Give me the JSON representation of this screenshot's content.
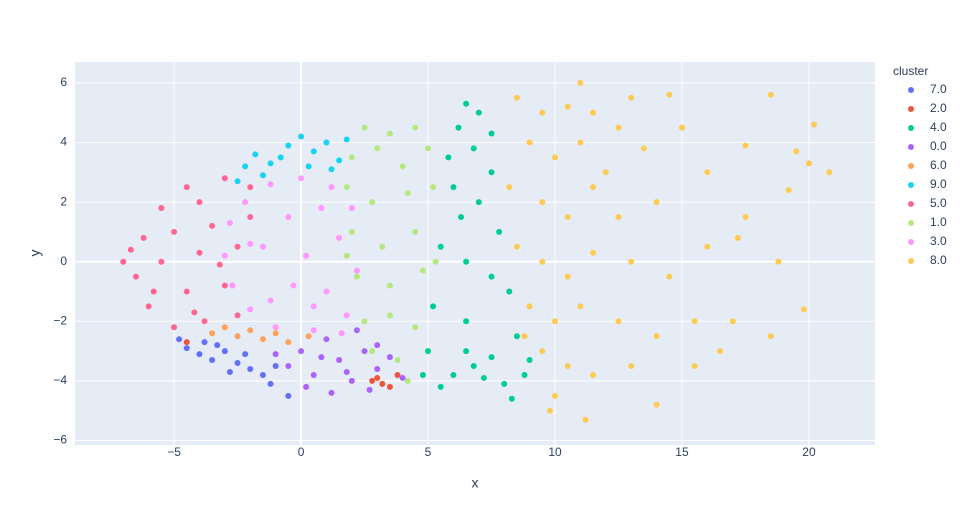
{
  "chart_data": {
    "type": "scatter",
    "xlabel": "x",
    "ylabel": "y",
    "legend_title": "cluster",
    "legend": "right",
    "xlim": [
      -8.9,
      22.6
    ],
    "ylim": [
      -6.15,
      6.7
    ],
    "grid": true,
    "xticks": [
      {
        "value": -5,
        "label": "−5"
      },
      0,
      5,
      10,
      15,
      20
    ],
    "yticks": [
      {
        "value": -6,
        "label": "−6"
      },
      {
        "value": -4,
        "label": "−4"
      },
      {
        "value": -2,
        "label": "−2"
      },
      0,
      2,
      4,
      6
    ],
    "series": [
      {
        "name": "7.0",
        "color": "#636efa",
        "x": [
          -4.5,
          -4,
          -3.5,
          -3,
          -2.5,
          -2,
          -1.5,
          -1,
          -3.8,
          -2.8,
          -4.8,
          -2.2,
          -1.2,
          -3.3,
          -0.5
        ],
        "y": [
          -2.9,
          -3.1,
          -3.3,
          -3.0,
          -3.4,
          -3.6,
          -3.8,
          -3.5,
          -2.7,
          -3.7,
          -2.6,
          -3.1,
          -4.1,
          -2.8,
          -4.5
        ]
      },
      {
        "name": "2.0",
        "color": "#EF553B",
        "x": [
          2.8,
          3.2,
          3.5,
          3,
          -4.5,
          3.8
        ],
        "y": [
          -4.0,
          -4.1,
          -4.2,
          -3.9,
          -2.7,
          -3.8
        ]
      },
      {
        "name": "4.0",
        "color": "#00cc96",
        "x": [
          6.5,
          7,
          6.2,
          7.5,
          5.8,
          6.8,
          7.5,
          6,
          7,
          6.3,
          7.8,
          5.5,
          6.5,
          7.5,
          8.2,
          5.2,
          6.5,
          8.5,
          5,
          6.5,
          7.5,
          9,
          4.8,
          6,
          7.2,
          8,
          8.3,
          5.5,
          6.8,
          8.8
        ],
        "y": [
          5.3,
          5,
          4.5,
          4.3,
          3.5,
          3.8,
          3,
          2.5,
          2,
          1.5,
          1,
          0.5,
          0,
          -0.5,
          -1,
          -1.5,
          -2,
          -2.5,
          -3,
          -3,
          -3.2,
          -3.3,
          -3.8,
          -3.8,
          -3.9,
          -4.1,
          -4.6,
          -4.2,
          -3.5,
          -3.8
        ]
      },
      {
        "name": "0.0",
        "color": "#ab63fa",
        "x": [
          -0.5,
          0,
          0.5,
          1,
          1.5,
          2,
          2.5,
          3,
          3.5,
          4,
          0.2,
          1.2,
          2.2,
          -1,
          3,
          1.8,
          0.8,
          2.7
        ],
        "y": [
          -3.5,
          -3,
          -3.8,
          -2.6,
          -3.3,
          -4,
          -3,
          -3.6,
          -3.2,
          -3.9,
          -4.2,
          -4.4,
          -2.3,
          -3.1,
          -2.8,
          -3.7,
          -3.2,
          -4.3
        ]
      },
      {
        "name": "6.0",
        "color": "#FFA15A",
        "x": [
          -3,
          -2.5,
          -2,
          -1.5,
          -1,
          -3.5,
          -0.5,
          0.3
        ],
        "y": [
          -2.2,
          -2.5,
          -2.3,
          -2.6,
          -2.4,
          -2.4,
          -2.7,
          -2.5
        ]
      },
      {
        "name": "9.0",
        "color": "#19d3f3",
        "x": [
          -2.2,
          -1.8,
          -1.2,
          -0.5,
          0,
          0.5,
          1,
          1.5,
          1.8,
          -1.5,
          0.3,
          -0.8,
          1.2,
          -2.5
        ],
        "y": [
          3.2,
          3.6,
          3.3,
          3.9,
          4.2,
          3.7,
          4,
          3.4,
          4.1,
          2.9,
          3.2,
          3.5,
          3.1,
          2.7
        ]
      },
      {
        "name": "5.0",
        "color": "#FF6692",
        "x": [
          -7,
          -6.5,
          -6.2,
          -6,
          -5.5,
          -5.5,
          -5,
          -5,
          -4.5,
          -4.5,
          -4,
          -4,
          -3.8,
          -3.5,
          -3,
          -3,
          -2.5,
          -2.5,
          -2,
          -2,
          -5.8,
          -6.7,
          -4.2,
          -3.2
        ],
        "y": [
          0,
          -0.5,
          0.8,
          -1.5,
          1.8,
          0,
          -2.2,
          1,
          2.5,
          -1,
          0.3,
          2,
          -2,
          1.2,
          2.8,
          -0.8,
          0.5,
          -1.8,
          2.5,
          1.5,
          -1,
          0.4,
          -1.7,
          -0.1
        ]
      },
      {
        "name": "1.0",
        "color": "#B6E880",
        "x": [
          2.5,
          3.5,
          4.5,
          2,
          3,
          4,
          5,
          1.8,
          2.8,
          4.2,
          5.2,
          2,
          3.2,
          4.5,
          2.2,
          3.5,
          4.8,
          2.5,
          3.5,
          4.5,
          2.8,
          3.8,
          4.2,
          5.3,
          1.8
        ],
        "y": [
          4.5,
          4.3,
          4.5,
          3.5,
          3.8,
          3.2,
          3.8,
          2.5,
          2,
          2.3,
          2.5,
          1,
          0.5,
          1,
          -0.5,
          -0.8,
          -0.3,
          -2,
          -1.8,
          -2.2,
          -3,
          -3.3,
          -4,
          0,
          0.2
        ]
      },
      {
        "name": "3.0",
        "color": "#FF97FF",
        "x": [
          -3,
          -2.8,
          -2.7,
          -2.2,
          -2,
          -1.5,
          -1.2,
          -1,
          -0.5,
          -0.3,
          0,
          0.2,
          0.5,
          0.8,
          1,
          1.2,
          1.5,
          1.8,
          2,
          2.2,
          -2,
          0.5,
          -1.2,
          1.6
        ],
        "y": [
          0.2,
          1.3,
          -0.8,
          2,
          -1.6,
          0.5,
          2.6,
          -2.2,
          1.5,
          -0.8,
          2.8,
          0.2,
          -2.3,
          1.8,
          -1,
          2.5,
          0.8,
          -1.8,
          1.8,
          -0.3,
          0.6,
          -1.5,
          -1.3,
          -2.4
        ]
      },
      {
        "name": "8.0",
        "color": "#FECB52",
        "x": [
          8.5,
          9.5,
          10.5,
          11.5,
          12.5,
          13,
          11,
          14.5,
          9,
          10,
          11,
          12,
          13.5,
          15,
          8.2,
          9.5,
          10.5,
          11.5,
          12.5,
          14,
          16,
          17.5,
          18.5,
          19.5,
          20.2,
          20.8,
          8.5,
          9.5,
          10.5,
          11.5,
          13,
          14.5,
          16,
          17.5,
          18.8,
          19.8,
          20,
          9,
          10,
          11,
          12.5,
          14,
          15.5,
          17,
          18.5,
          9.5,
          10.5,
          11.5,
          13,
          14,
          15.5,
          10,
          11.2,
          9.8,
          8.8,
          17.2,
          19.2,
          16.5
        ],
        "y": [
          5.5,
          5,
          5.2,
          5,
          4.5,
          5.5,
          6,
          5.6,
          4,
          3.5,
          4,
          3,
          3.8,
          4.5,
          2.5,
          2,
          1.5,
          2.5,
          1.5,
          2,
          3,
          3.9,
          5.6,
          3.7,
          4.6,
          3,
          0.5,
          0,
          -0.5,
          0.3,
          0,
          -0.5,
          0.5,
          1.5,
          0,
          -1.6,
          3.3,
          -1.5,
          -2,
          -1.5,
          -2,
          -2.5,
          -2,
          -2,
          -2.5,
          -3,
          -3.5,
          -3.8,
          -3.5,
          -4.8,
          -3.5,
          -4.5,
          -5.3,
          -5,
          -2.5,
          0.8,
          2.4,
          -3
        ]
      }
    ]
  }
}
